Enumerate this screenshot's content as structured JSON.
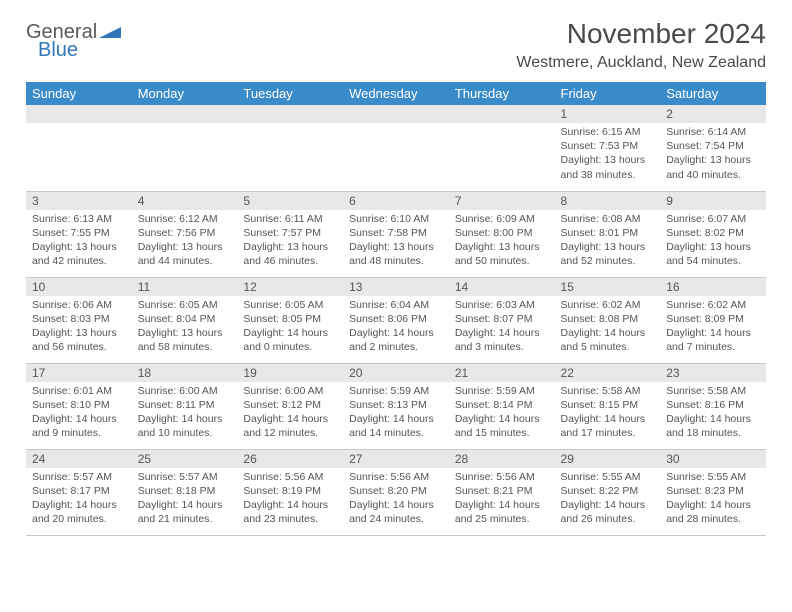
{
  "logo": {
    "word1": "General",
    "word2": "Blue",
    "shape_color": "#2f77b8",
    "word1_color": "#5a5a5a",
    "word2_color": "#2f77b8"
  },
  "header": {
    "title": "November 2024",
    "location": "Westmere, Auckland, New Zealand"
  },
  "colors": {
    "header_bg": "#3a8bc9",
    "header_text": "#ffffff",
    "daynum_bg": "#e8e8e8",
    "border": "#c8c8c8",
    "text": "#555555"
  },
  "daynames": [
    "Sunday",
    "Monday",
    "Tuesday",
    "Wednesday",
    "Thursday",
    "Friday",
    "Saturday"
  ],
  "weeks": [
    [
      null,
      null,
      null,
      null,
      null,
      {
        "n": "1",
        "sr": "6:15 AM",
        "ss": "7:53 PM",
        "dh": "13",
        "dm": "38"
      },
      {
        "n": "2",
        "sr": "6:14 AM",
        "ss": "7:54 PM",
        "dh": "13",
        "dm": "40"
      }
    ],
    [
      {
        "n": "3",
        "sr": "6:13 AM",
        "ss": "7:55 PM",
        "dh": "13",
        "dm": "42"
      },
      {
        "n": "4",
        "sr": "6:12 AM",
        "ss": "7:56 PM",
        "dh": "13",
        "dm": "44"
      },
      {
        "n": "5",
        "sr": "6:11 AM",
        "ss": "7:57 PM",
        "dh": "13",
        "dm": "46"
      },
      {
        "n": "6",
        "sr": "6:10 AM",
        "ss": "7:58 PM",
        "dh": "13",
        "dm": "48"
      },
      {
        "n": "7",
        "sr": "6:09 AM",
        "ss": "8:00 PM",
        "dh": "13",
        "dm": "50"
      },
      {
        "n": "8",
        "sr": "6:08 AM",
        "ss": "8:01 PM",
        "dh": "13",
        "dm": "52"
      },
      {
        "n": "9",
        "sr": "6:07 AM",
        "ss": "8:02 PM",
        "dh": "13",
        "dm": "54"
      }
    ],
    [
      {
        "n": "10",
        "sr": "6:06 AM",
        "ss": "8:03 PM",
        "dh": "13",
        "dm": "56"
      },
      {
        "n": "11",
        "sr": "6:05 AM",
        "ss": "8:04 PM",
        "dh": "13",
        "dm": "58"
      },
      {
        "n": "12",
        "sr": "6:05 AM",
        "ss": "8:05 PM",
        "dh": "14",
        "dm": "0"
      },
      {
        "n": "13",
        "sr": "6:04 AM",
        "ss": "8:06 PM",
        "dh": "14",
        "dm": "2"
      },
      {
        "n": "14",
        "sr": "6:03 AM",
        "ss": "8:07 PM",
        "dh": "14",
        "dm": "3"
      },
      {
        "n": "15",
        "sr": "6:02 AM",
        "ss": "8:08 PM",
        "dh": "14",
        "dm": "5"
      },
      {
        "n": "16",
        "sr": "6:02 AM",
        "ss": "8:09 PM",
        "dh": "14",
        "dm": "7"
      }
    ],
    [
      {
        "n": "17",
        "sr": "6:01 AM",
        "ss": "8:10 PM",
        "dh": "14",
        "dm": "9"
      },
      {
        "n": "18",
        "sr": "6:00 AM",
        "ss": "8:11 PM",
        "dh": "14",
        "dm": "10"
      },
      {
        "n": "19",
        "sr": "6:00 AM",
        "ss": "8:12 PM",
        "dh": "14",
        "dm": "12"
      },
      {
        "n": "20",
        "sr": "5:59 AM",
        "ss": "8:13 PM",
        "dh": "14",
        "dm": "14"
      },
      {
        "n": "21",
        "sr": "5:59 AM",
        "ss": "8:14 PM",
        "dh": "14",
        "dm": "15"
      },
      {
        "n": "22",
        "sr": "5:58 AM",
        "ss": "8:15 PM",
        "dh": "14",
        "dm": "17"
      },
      {
        "n": "23",
        "sr": "5:58 AM",
        "ss": "8:16 PM",
        "dh": "14",
        "dm": "18"
      }
    ],
    [
      {
        "n": "24",
        "sr": "5:57 AM",
        "ss": "8:17 PM",
        "dh": "14",
        "dm": "20"
      },
      {
        "n": "25",
        "sr": "5:57 AM",
        "ss": "8:18 PM",
        "dh": "14",
        "dm": "21"
      },
      {
        "n": "26",
        "sr": "5:56 AM",
        "ss": "8:19 PM",
        "dh": "14",
        "dm": "23"
      },
      {
        "n": "27",
        "sr": "5:56 AM",
        "ss": "8:20 PM",
        "dh": "14",
        "dm": "24"
      },
      {
        "n": "28",
        "sr": "5:56 AM",
        "ss": "8:21 PM",
        "dh": "14",
        "dm": "25"
      },
      {
        "n": "29",
        "sr": "5:55 AM",
        "ss": "8:22 PM",
        "dh": "14",
        "dm": "26"
      },
      {
        "n": "30",
        "sr": "5:55 AM",
        "ss": "8:23 PM",
        "dh": "14",
        "dm": "28"
      }
    ]
  ],
  "labels": {
    "sunrise": "Sunrise:",
    "sunset": "Sunset:",
    "daylight": "Daylight:",
    "hours_and": "hours and",
    "minutes": "minutes."
  }
}
